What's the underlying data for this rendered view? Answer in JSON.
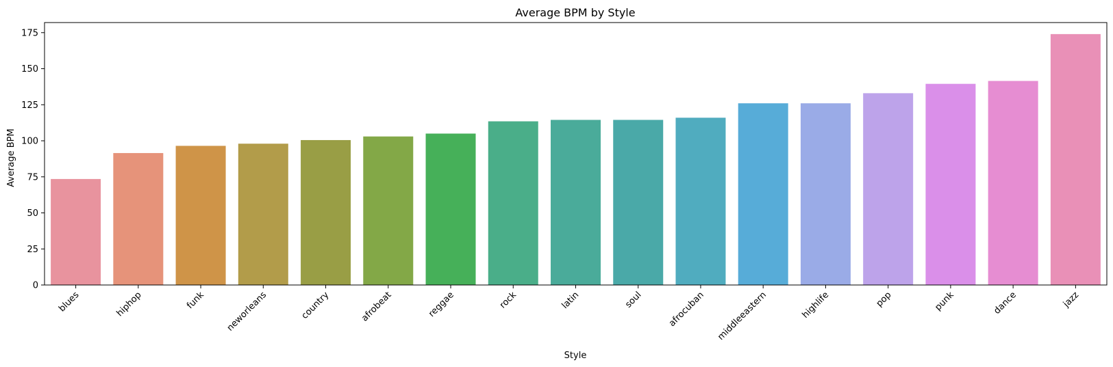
{
  "chart_data": {
    "type": "bar",
    "title": "Average BPM by Style",
    "xlabel": "Style",
    "ylabel": "Average BPM",
    "categories": [
      "blues",
      "hiphop",
      "funk",
      "neworleans",
      "country",
      "afrobeat",
      "reggae",
      "rock",
      "latin",
      "soul",
      "afrocuban",
      "middleeastern",
      "highlife",
      "pop",
      "punk",
      "dance",
      "jazz"
    ],
    "values": [
      73.5,
      91.5,
      96.5,
      98,
      100.5,
      103,
      105,
      113.5,
      114.5,
      114.5,
      116,
      126,
      126,
      133,
      139.5,
      141.5,
      174
    ],
    "colors": [
      "#e8939e",
      "#e6937a",
      "#cf9448",
      "#b29c4a",
      "#999e45",
      "#83a847",
      "#46b059",
      "#4aae89",
      "#4aab9a",
      "#4aa9a8",
      "#50acbf",
      "#57acd8",
      "#9aabe7",
      "#bda3ea",
      "#da8fe9",
      "#e68dd2",
      "#e990b7"
    ],
    "ylim": [
      0,
      182
    ],
    "yticks": [
      0,
      25,
      50,
      75,
      100,
      125,
      150,
      175
    ],
    "grid": false
  }
}
